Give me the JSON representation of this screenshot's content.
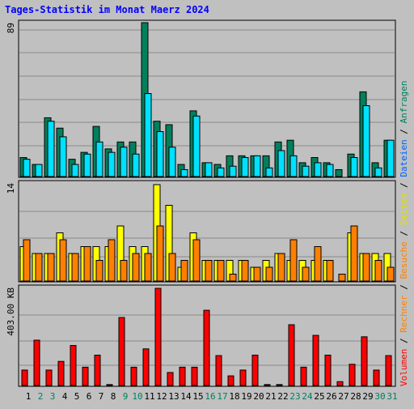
{
  "title": "Tages-Statistik im Monat Maerz 2024",
  "legend": {
    "volumen": "Volumen",
    "rechner": "Rechner",
    "besuche": "Besuche",
    "seiten": "Seiten",
    "dateien": "Dateien",
    "anfragen": "Anfragen",
    "sep": "/"
  },
  "colors": {
    "anfragen": "#00805c",
    "dateien": "#00e0ff",
    "seiten": "#ffff00",
    "besuche": "#ff8000",
    "rechner": "#ff8000",
    "volumen": "#ff0000",
    "title": "#0000ff",
    "weekend_day": "#00805c",
    "weekday": "#000000"
  },
  "chart_data": [
    {
      "type": "bar",
      "name": "requests-files",
      "ymax_label": "89",
      "ylim": [
        0,
        89
      ],
      "categories": [
        "1",
        "2",
        "3",
        "4",
        "5",
        "6",
        "7",
        "8",
        "9",
        "10",
        "11",
        "12",
        "13",
        "14",
        "15",
        "16",
        "17",
        "18",
        "19",
        "20",
        "21",
        "22",
        "23",
        "24",
        "25",
        "26",
        "27",
        "28",
        "29",
        "30",
        "31"
      ],
      "weekend_days": [
        "2",
        "3",
        "9",
        "10",
        "16",
        "17",
        "23",
        "24",
        "30",
        "31"
      ],
      "series": [
        {
          "name": "Anfragen",
          "values": [
            11,
            7,
            34,
            28,
            10,
            14,
            29,
            16,
            20,
            20,
            89,
            32,
            30,
            7,
            38,
            8,
            7,
            12,
            12,
            12,
            12,
            20,
            21,
            8,
            11,
            8,
            4,
            13,
            49,
            8,
            21
          ]
        },
        {
          "name": "Dateien",
          "values": [
            10,
            7,
            32,
            23,
            7,
            13,
            20,
            14,
            17,
            13,
            48,
            26,
            17,
            4,
            35,
            8,
            5,
            6,
            11,
            12,
            5,
            15,
            12,
            6,
            8,
            7,
            0,
            11,
            41,
            5,
            21
          ]
        }
      ]
    },
    {
      "type": "bar",
      "name": "pages-visits",
      "ymax_label": "14",
      "ylim": [
        0,
        14
      ],
      "categories": [
        "1",
        "2",
        "3",
        "4",
        "5",
        "6",
        "7",
        "8",
        "9",
        "10",
        "11",
        "12",
        "13",
        "14",
        "15",
        "16",
        "17",
        "18",
        "19",
        "20",
        "21",
        "22",
        "23",
        "24",
        "25",
        "26",
        "27",
        "28",
        "29",
        "30",
        "31"
      ],
      "series": [
        {
          "name": "Seiten",
          "values": [
            5,
            4,
            4,
            7,
            4,
            5,
            5,
            5,
            8,
            5,
            5,
            14,
            11,
            2,
            7,
            3,
            3,
            3,
            3,
            2,
            3,
            4,
            3,
            3,
            3,
            3,
            0,
            7,
            4,
            4,
            4
          ]
        },
        {
          "name": "Besuche",
          "values": [
            6,
            4,
            4,
            6,
            4,
            5,
            3,
            6,
            3,
            4,
            4,
            8,
            4,
            3,
            6,
            3,
            3,
            1,
            3,
            2,
            2,
            4,
            6,
            2,
            5,
            3,
            1,
            8,
            4,
            3,
            2
          ]
        }
      ]
    },
    {
      "type": "bar",
      "name": "volume",
      "ymax_label": "403.00 KB",
      "ylim": [
        0,
        403
      ],
      "categories": [
        "1",
        "2",
        "3",
        "4",
        "5",
        "6",
        "7",
        "8",
        "9",
        "10",
        "11",
        "12",
        "13",
        "14",
        "15",
        "16",
        "17",
        "18",
        "19",
        "20",
        "21",
        "22",
        "23",
        "24",
        "25",
        "26",
        "27",
        "28",
        "29",
        "30",
        "31"
      ],
      "series": [
        {
          "name": "Volumen",
          "values": [
            64,
            188,
            64,
            100,
            166,
            76,
            126,
            4,
            282,
            76,
            152,
            403,
            54,
            76,
            76,
            312,
            124,
            40,
            64,
            126,
            4,
            4,
            252,
            76,
            208,
            126,
            16,
            88,
            202,
            64,
            124
          ]
        }
      ]
    }
  ]
}
